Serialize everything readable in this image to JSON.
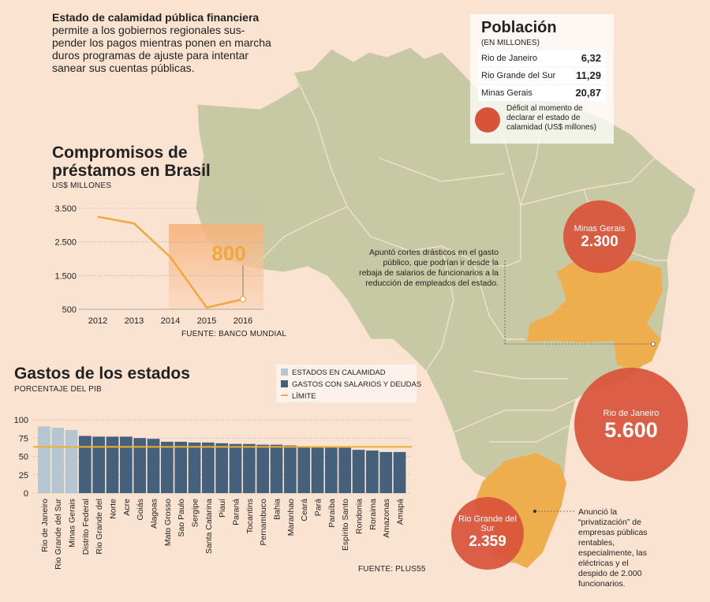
{
  "intro": {
    "bold": "Estado de calamidad pública financiera",
    "text": "permite a los gobiernos regionales sus-\npender los pagos mientras ponen en marcha\nduros programas de ajuste para intentar\nsanear sus cuentas públicas."
  },
  "poblacion": {
    "title": "Población",
    "unit": "(EN MILLONES)",
    "rows": [
      {
        "name": "Rio de Janeiro",
        "value": "6,32"
      },
      {
        "name": "Rio Grande del Sur",
        "value": "11,29"
      },
      {
        "name": "Minas Gerais",
        "value": "20,87"
      }
    ],
    "legend": "Déficit al momento de declarar el estado de calamidad (US$ millones)"
  },
  "bubbles": [
    {
      "name": "Minas Gerais",
      "value": "2.300"
    },
    {
      "name": "Rio de Janeiro",
      "value": "5.600"
    },
    {
      "name": "Rio Grande del Sur",
      "value": "2.359"
    }
  ],
  "notes": {
    "minas": "Apuntó cortes drásticos en el gasto público, que podrían ir desde la rebaja de salarios de funcionarios a la reducción de empleados del estado.",
    "rgs": "Anunció la “privatización” de empresas públicas rentables, especialmente, las eléctricas y el despido de 2.000 funcionarios."
  },
  "colors": {
    "background": "#fbe3d2",
    "map": "#c7c9a4",
    "highlight_state": "#efae4e",
    "bubble": "#d9533a",
    "line": "#f0a83c",
    "bar_calamity": "#b6c6d0",
    "bar_other": "#45607a",
    "limit": "#f0b030"
  },
  "chart_data": [
    {
      "type": "line",
      "title": "Compromisos de préstamos en Brasil",
      "ylabel": "US$ MILLONES",
      "x": [
        "2012",
        "2013",
        "2014",
        "2015",
        "2016"
      ],
      "values": [
        3250,
        3050,
        2050,
        550,
        800
      ],
      "yticks": [
        "3.500",
        "2.500",
        "1.500",
        "500"
      ],
      "ytick_values": [
        3500,
        2500,
        1500,
        500
      ],
      "ylim": [
        500,
        3500
      ],
      "annotation": "800",
      "source": "FUENTE: BANCO MUNDIAL"
    },
    {
      "type": "bar",
      "title": "Gastos de los estados",
      "ylabel": "PORCENTAJE DEL PIB",
      "ylim": [
        0,
        100
      ],
      "yticks": [
        "100",
        "75",
        "50",
        "25",
        "0"
      ],
      "ytick_values": [
        100,
        75,
        50,
        25,
        0
      ],
      "legend": [
        "ESTADOS EN CALAMIDAD",
        "GASTOS CON SALARIOS Y DEUDAS",
        "LÍMITE"
      ],
      "limit": 63,
      "categories": [
        "Rio de Janeiro",
        "Rio Grande del Sur",
        "Minas Gerais",
        "Distrito Federal",
        "Rio Grande del",
        "Norte",
        "Acre",
        "Goiás",
        "Alagoas",
        "Mato Grosso",
        "Sao Paulo",
        "Sergipe",
        "Santa Catarina",
        "Piauí",
        "Paraná",
        "Tocantins",
        "Pernambuco",
        "Bahia",
        "Maranhao",
        "Ceará",
        "Pará",
        "Paraíba",
        "Espírito Santo",
        "Rondonia",
        "Roraima",
        "Amazonas",
        "Amapá"
      ],
      "values": [
        91,
        89,
        86,
        78,
        77,
        77,
        77,
        75,
        74,
        70,
        70,
        69,
        69,
        68,
        67,
        67,
        66,
        66,
        65,
        63,
        62,
        62,
        62,
        59,
        58,
        56,
        56
      ],
      "calamity_count": 3,
      "source": "FUENTE: PLUS55"
    }
  ]
}
